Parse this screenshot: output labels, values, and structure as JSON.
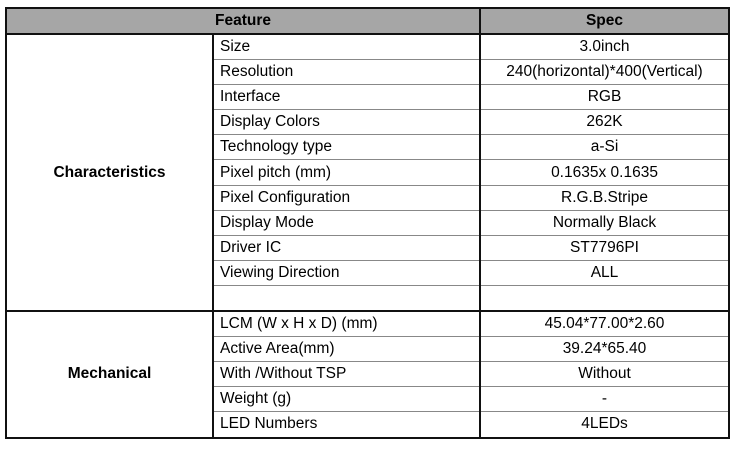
{
  "header": {
    "feature": "Feature",
    "spec": "Spec"
  },
  "sections": [
    {
      "name": "Characteristics",
      "rows": [
        {
          "feature": "Size",
          "spec": "3.0inch"
        },
        {
          "feature": "Resolution",
          "spec": "240(horizontal)*400(Vertical)"
        },
        {
          "feature": "Interface",
          "spec": "RGB"
        },
        {
          "feature": "Display Colors",
          "spec": "262K"
        },
        {
          "feature": "Technology type",
          "spec": "a-Si"
        },
        {
          "feature": "Pixel pitch (mm)",
          "spec": "0.1635x 0.1635"
        },
        {
          "feature": "Pixel Configuration",
          "spec": "R.G.B.Stripe"
        },
        {
          "feature": "Display Mode",
          "spec": "Normally Black"
        },
        {
          "feature": "Driver IC",
          "spec": "ST7796PI"
        },
        {
          "feature": "Viewing Direction",
          "spec": "ALL"
        },
        {
          "feature": "",
          "spec": ""
        }
      ]
    },
    {
      "name": "Mechanical",
      "rows": [
        {
          "feature": "LCM (W x H x D) (mm)",
          "spec": "45.04*77.00*2.60"
        },
        {
          "feature": "Active Area(mm)",
          "spec": "39.24*65.40"
        },
        {
          "feature": "With /Without TSP",
          "spec": "Without"
        },
        {
          "feature": "Weight (g)",
          "spec": "-"
        },
        {
          "feature": "LED Numbers",
          "spec": "4LEDs"
        }
      ]
    }
  ]
}
